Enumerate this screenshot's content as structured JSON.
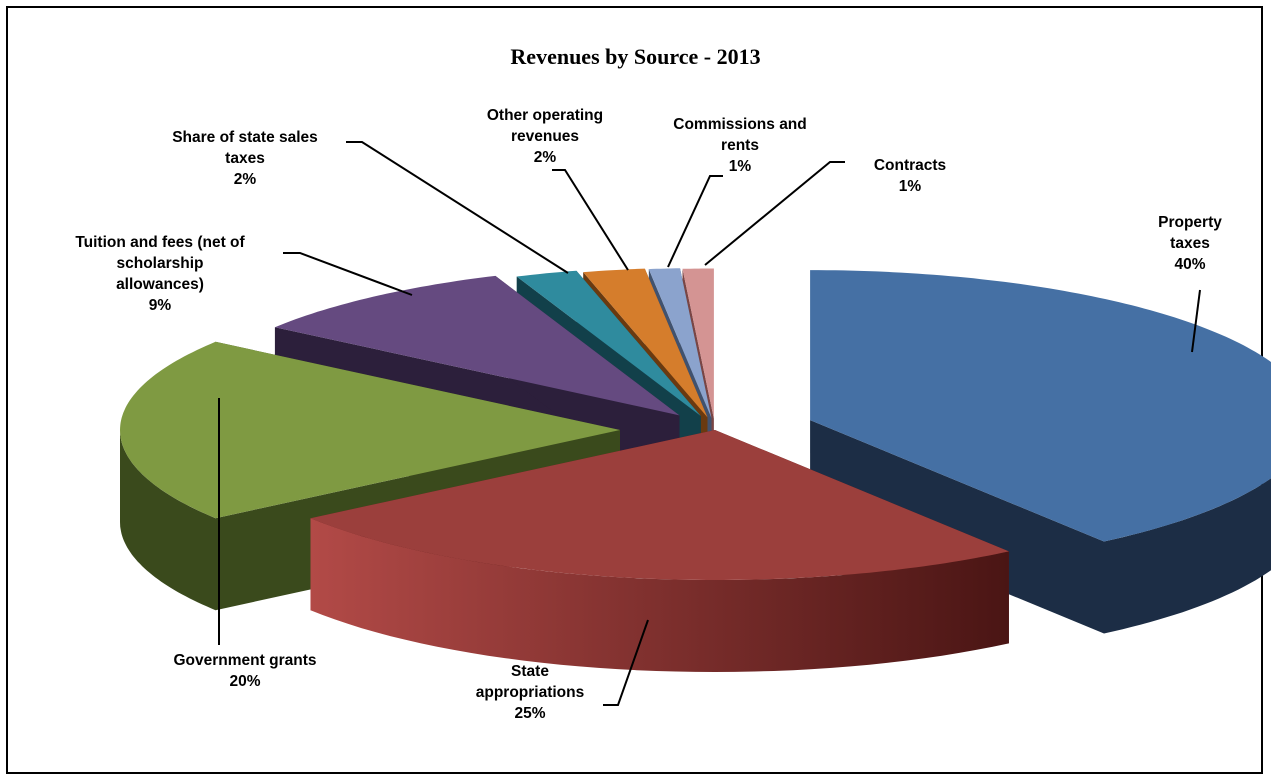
{
  "chart_data": {
    "type": "pie",
    "style": "3d-exploded",
    "title": "Revenues by Source - 2013",
    "slices": [
      {
        "name": "Property taxes",
        "label_lines": [
          "Property",
          "taxes"
        ],
        "value": 40,
        "pct_label": "40%",
        "color": "#4570a4",
        "side_color": "#1c2d45"
      },
      {
        "name": "State appropriations",
        "label_lines": [
          "State",
          "appropriations"
        ],
        "value": 25,
        "pct_label": "25%",
        "color": "#9b3f3c",
        "side_color": "#5c1d1b"
      },
      {
        "name": "Government grants",
        "label_lines": [
          "Government grants"
        ],
        "value": 20,
        "pct_label": "20%",
        "color": "#7f9a42",
        "side_color": "#3a4a1c"
      },
      {
        "name": "Tuition and fees (net of scholarship allowances)",
        "label_lines": [
          "Tuition and fees (net of",
          "scholarship",
          "allowances)"
        ],
        "value": 9,
        "pct_label": "9%",
        "color": "#654a80",
        "side_color": "#2c1f3b"
      },
      {
        "name": "Share of state sales taxes",
        "label_lines": [
          "Share of state sales",
          "taxes"
        ],
        "value": 2,
        "pct_label": "2%",
        "color": "#2f8b9e",
        "side_color": "#12404a"
      },
      {
        "name": "Other operating revenues",
        "label_lines": [
          "Other operating",
          "revenues"
        ],
        "value": 2,
        "pct_label": "2%",
        "color": "#d57d2c",
        "side_color": "#6a3a10"
      },
      {
        "name": "Commissions and rents",
        "label_lines": [
          "Commissions  and",
          "rents"
        ],
        "value": 1,
        "pct_label": "1%",
        "color": "#8ba3cd",
        "side_color": "#41526e"
      },
      {
        "name": "Contracts",
        "label_lines": [
          "Contracts"
        ],
        "value": 1,
        "pct_label": "1%",
        "color": "#d49493",
        "side_color": "#7a4544"
      }
    ]
  }
}
